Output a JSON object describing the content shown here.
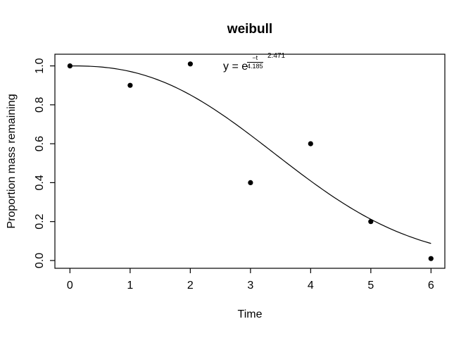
{
  "title": "weibull",
  "equation": {
    "lhs": "y = e",
    "numerator": "−t",
    "denominator": "4.185",
    "exponent": "2.471"
  },
  "chart_data": {
    "type": "scatter",
    "title": "weibull",
    "xlabel": "Time",
    "ylabel": "Proportion mass remaining",
    "x": [
      0,
      1,
      2,
      3,
      4,
      5,
      6
    ],
    "y": [
      1.0,
      0.9,
      1.01,
      0.4,
      0.6,
      0.2,
      0.01
    ],
    "x_tick_values": [
      0,
      1,
      2,
      3,
      4,
      5,
      6
    ],
    "x_tick_labels": [
      "0",
      "1",
      "2",
      "3",
      "4",
      "5",
      "6"
    ],
    "y_tick_values": [
      0.0,
      0.2,
      0.4,
      0.6,
      0.8,
      1.0
    ],
    "y_tick_labels": [
      "0.0",
      "0.2",
      "0.4",
      "0.6",
      "0.8",
      "1.0"
    ],
    "xlim": [
      -0.25,
      6.23
    ],
    "ylim": [
      -0.04,
      1.06
    ],
    "grid": false,
    "legend": null,
    "annotation": "y = e^((−t/4.185)^2.471)",
    "fit_curve": {
      "type": "weibull-decay",
      "formula": "y = exp(-(t/4.185)^2.471)",
      "scale": 4.185,
      "shape": 2.471,
      "t_range": [
        0,
        6
      ]
    },
    "point_color": "#000000",
    "curve_color": "#000000",
    "frame_color": "#000000"
  }
}
